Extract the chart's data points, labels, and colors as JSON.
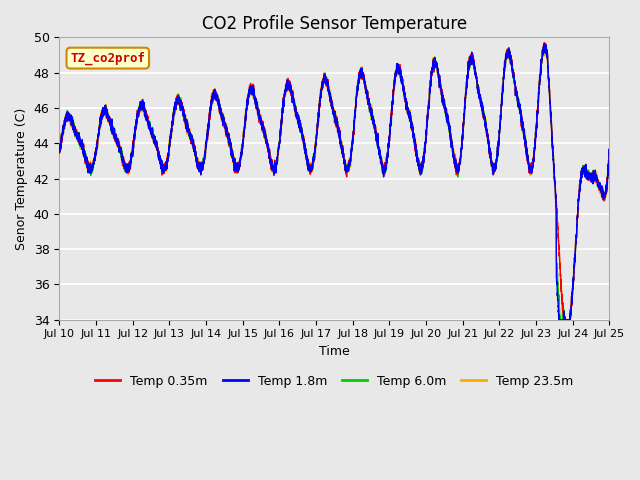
{
  "title": "CO2 Profile Sensor Temperature",
  "xlabel": "Time",
  "ylabel": "Senor Temperature (C)",
  "ylim": [
    34,
    50
  ],
  "yticks": [
    34,
    36,
    38,
    40,
    42,
    44,
    46,
    48,
    50
  ],
  "xlim_start": 0,
  "xlim_end": 15,
  "xtick_labels": [
    "Jul 10",
    "Jul 11",
    "Jul 12",
    "Jul 13",
    "Jul 14",
    "Jul 15",
    "Jul 16",
    "Jul 17",
    "Jul 18",
    "Jul 19",
    "Jul 20",
    "Jul 21",
    "Jul 22",
    "Jul 23",
    "Jul 24",
    "Jul 25"
  ],
  "legend_labels": [
    "Temp 0.35m",
    "Temp 1.8m",
    "Temp 6.0m",
    "Temp 23.5m"
  ],
  "legend_colors": [
    "#ff0000",
    "#0000ff",
    "#00cc00",
    "#ffaa00"
  ],
  "annotation_text": "TZ_co2prof",
  "annotation_bg": "#ffffcc",
  "annotation_border": "#cc8800",
  "annotation_text_color": "#cc0000",
  "bg_color": "#e8e8e8",
  "grid_color": "#ffffff",
  "line_width": 1.0,
  "title_fontsize": 12
}
